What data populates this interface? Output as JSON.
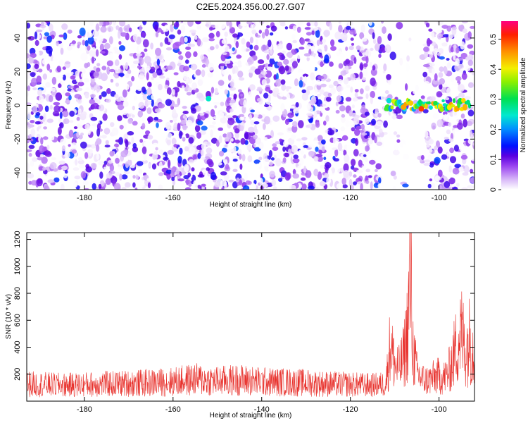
{
  "title": "C2E5.2024.356.00.27.G07",
  "chart_data": [
    {
      "type": "heatmap",
      "xlabel": "Height of straight line (km)",
      "ylabel": "Frequency (Hz)",
      "xlim": [
        -193,
        -92
      ],
      "ylim": [
        -50,
        50
      ],
      "xticks": [
        -180,
        -160,
        -140,
        -120,
        -100
      ],
      "yticks": [
        -40,
        -20,
        0,
        20,
        40
      ],
      "grid": false,
      "features": [
        {
          "x_range": [
            -112,
            -93
          ],
          "y_center": 0,
          "y_halfwidth": 3,
          "level": 0.35
        },
        {
          "x": -152,
          "y": 4,
          "level": 0.25
        },
        {
          "x": -104,
          "y": -2,
          "level": 0.5
        },
        {
          "x": -108,
          "y": -1,
          "level": 0.45
        }
      ],
      "white_band_x_range": [
        -113,
        -103
      ],
      "colorbar": {
        "label": "Normalized spectral amplitude",
        "range": [
          0,
          0.56
        ],
        "ticks": [
          0,
          0.1,
          0.2,
          0.3,
          0.4,
          0.5
        ]
      }
    },
    {
      "type": "line",
      "xlabel": "Height of straight line (km)",
      "ylabel": "SNR (10 * v/v)",
      "xlim": [
        -193,
        -92
      ],
      "ylim": [
        0,
        1250
      ],
      "xticks": [
        -180,
        -160,
        -140,
        -120,
        -100
      ],
      "yticks": [
        200,
        400,
        600,
        800,
        1000,
        1200
      ],
      "grid": false,
      "series": [
        {
          "color": "#e8332e",
          "x": [
            -193,
            -185,
            -175,
            -165,
            -160,
            -155,
            -150,
            -145,
            -140,
            -135,
            -130,
            -125,
            -120,
            -115,
            -112,
            -111,
            -110,
            -109,
            -108,
            -107,
            -106.5,
            -106,
            -105,
            -104,
            -103,
            -102,
            -101,
            -100,
            -99,
            -98,
            -97,
            -96,
            -95,
            -94,
            -93,
            -92
          ],
          "y": [
            150,
            140,
            150,
            160,
            170,
            190,
            175,
            185,
            170,
            165,
            160,
            150,
            145,
            140,
            150,
            500,
            320,
            280,
            380,
            650,
            1240,
            500,
            250,
            200,
            180,
            190,
            210,
            220,
            200,
            240,
            350,
            500,
            600,
            450,
            550,
            400
          ]
        }
      ]
    }
  ]
}
